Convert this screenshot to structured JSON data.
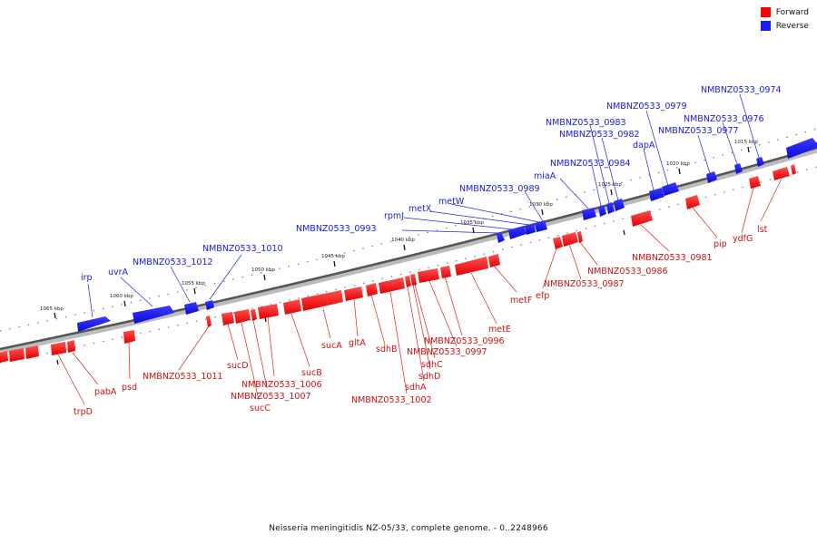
{
  "legend": {
    "forward": {
      "label": "Forward",
      "color": "#ff0000"
    },
    "reverse": {
      "label": "Reverse",
      "color": "#1a1aff"
    }
  },
  "caption": "Neisseria meningitidis NZ-05/33, complete genome. - 0..2248966",
  "ticks": [
    "1065 kbp",
    "1060 kbp",
    "1055 kbp",
    "1050 kbp",
    "1045 kbp",
    "1040 kbp",
    "1035 kbp",
    "1030 kbp",
    "1025 kbp",
    "1020 kbp",
    "1015 kbp"
  ],
  "reverse_genes": [
    "NMBNZ0533_0974",
    "NMBNZ0533_0976",
    "NMBNZ0533_0977",
    "NMBNZ0533_0979",
    "NMBNZ0533_0982",
    "NMBNZ0533_0983",
    "NMBNZ0533_0984",
    "dapA",
    "miaA",
    "NMBNZ0533_0989",
    "metW",
    "metX",
    "rpmJ",
    "NMBNZ0533_0993",
    "NMBNZ0533_1010",
    "NMBNZ0533_1012",
    "uvrA",
    "irp"
  ],
  "forward_genes": [
    "lst",
    "ydfG",
    "pip",
    "NMBNZ0533_0981",
    "NMBNZ0533_0986",
    "NMBNZ0533_0987",
    "efp",
    "metF",
    "metE",
    "NMBNZ0533_0996",
    "NMBNZ0533_0997",
    "sdhC",
    "sdhD",
    "sdhA",
    "NMBNZ0533_1002",
    "sdhB",
    "gltA",
    "sucA",
    "sucB",
    "NMBNZ0533_1006",
    "NMBNZ0533_1007",
    "sucC",
    "sucD",
    "NMBNZ0533_1011",
    "psd",
    "pabA",
    "trpD"
  ]
}
